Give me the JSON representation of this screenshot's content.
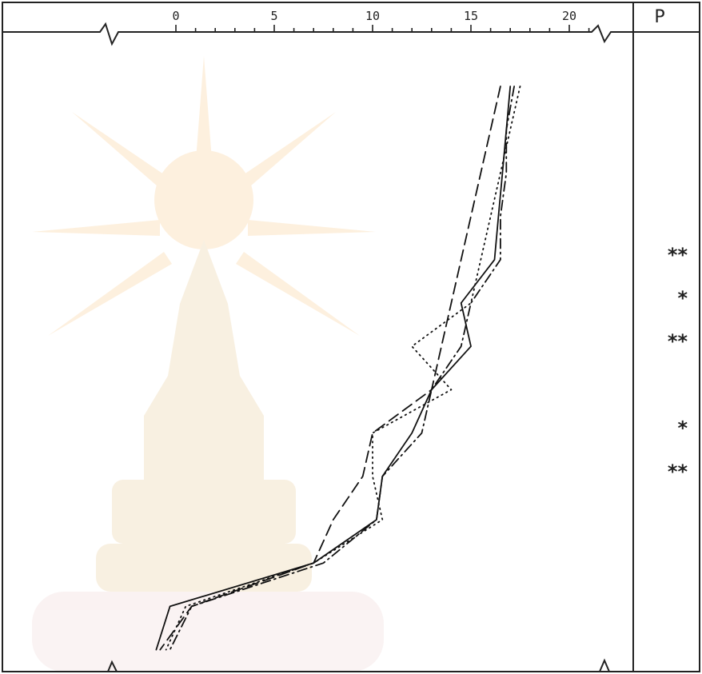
{
  "chart_data": {
    "type": "line",
    "orientation": "profile",
    "title": "",
    "xlabel": "",
    "ylabel": "",
    "xlim": [
      -4,
      23
    ],
    "x_ticks": [
      0,
      5,
      10,
      15,
      20
    ],
    "x_tick_labels": [
      "0",
      "5",
      "10",
      "15",
      "20"
    ],
    "y_levels": 15,
    "grid": false,
    "legend": "none",
    "series": [
      {
        "style": "solid",
        "values": [
          17.0,
          16.8,
          16.6,
          16.4,
          16.2,
          14.5,
          15.0,
          13.0,
          12.0,
          10.5,
          10.2,
          7.0,
          -0.3,
          -1.0
        ]
      },
      {
        "style": "dashed",
        "values": [
          16.5,
          16.0,
          15.5,
          15.0,
          14.5,
          14.0,
          13.5,
          13.0,
          10.0,
          9.5,
          8.0,
          7.0,
          0.8,
          -0.8
        ]
      },
      {
        "style": "dotted",
        "values": [
          17.5,
          17.0,
          16.5,
          16.0,
          15.5,
          15.0,
          12.0,
          14.0,
          10.0,
          10.0,
          10.5,
          7.0,
          0.5,
          -0.5
        ]
      },
      {
        "style": "dash-dot",
        "values": [
          17.2,
          16.8,
          16.8,
          16.5,
          16.5,
          15.0,
          14.5,
          13.0,
          12.5,
          10.5,
          10.2,
          7.5,
          0.8,
          -0.3
        ]
      }
    ],
    "significance_header": "P",
    "significance": [
      {
        "level_index": 4,
        "mark": "**"
      },
      {
        "level_index": 5,
        "mark": "*"
      },
      {
        "level_index": 6,
        "mark": "**"
      },
      {
        "level_index": 8,
        "mark": "*"
      },
      {
        "level_index": 9,
        "mark": "**"
      }
    ]
  }
}
